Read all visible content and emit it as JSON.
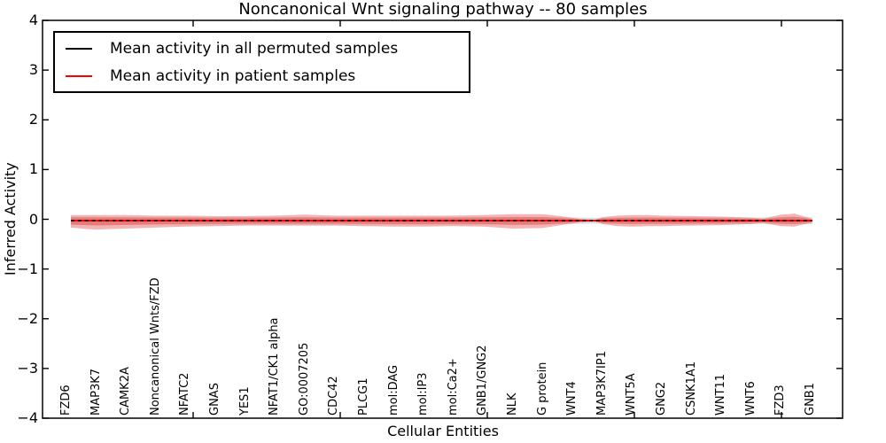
{
  "title": "Noncanonical Wnt signaling pathway -- 80 samples",
  "legend": {
    "items": [
      {
        "label": "Mean activity in all permuted samples",
        "color": "#000000"
      },
      {
        "label": "Mean activity in patient samples",
        "color": "#ff0000"
      }
    ]
  },
  "axes": {
    "ylabel": "Inferred Activity",
    "xlabel": "Cellular Entities",
    "yticks": [
      "4",
      "3",
      "2",
      "1",
      "0",
      "−1",
      "−2",
      "−3",
      "−4"
    ],
    "ylim": [
      -4,
      4
    ]
  },
  "chart_data": {
    "type": "line",
    "title": "Noncanonical Wnt signaling pathway -- 80 samples",
    "xlabel": "Cellular Entities",
    "ylabel": "Inferred Activity",
    "ylim": [
      -4,
      4
    ],
    "grid": false,
    "legend_position": "upper left",
    "categories": [
      "FZD6",
      "MAP3K7",
      "CAMK2A",
      "Noncanonical Wnts/FZD",
      "NFATC2",
      "GNAS",
      "YES1",
      "NFAT1/CK1 alpha",
      "GO:0007205",
      "CDC42",
      "PLCG1",
      "mol:DAG",
      "mol:IP3",
      "mol:Ca2+",
      "GNB1/GNG2",
      "NLK",
      "G protein",
      "WNT4",
      "MAP3K7IP1",
      "WNT5A",
      "GNG2",
      "CSNK1A1",
      "WNT11",
      "WNT6",
      "FZD3",
      "GNB1"
    ],
    "series": [
      {
        "name": "Mean activity in all permuted samples",
        "color": "#000000",
        "style": "dashed",
        "values": [
          0,
          0,
          0,
          0,
          0,
          0,
          0,
          0,
          0,
          0,
          0,
          0,
          0,
          0,
          0,
          0,
          0,
          0,
          0,
          0,
          0,
          0,
          0,
          0,
          0,
          0
        ]
      },
      {
        "name": "Mean activity in patient samples",
        "color": "#ff0000",
        "style": "solid",
        "values": [
          -0.02,
          -0.02,
          -0.02,
          -0.02,
          -0.02,
          -0.02,
          -0.02,
          -0.02,
          -0.02,
          -0.02,
          -0.02,
          -0.02,
          -0.02,
          -0.02,
          -0.02,
          -0.02,
          -0.02,
          -0.02,
          -0.02,
          -0.02,
          -0.02,
          -0.02,
          -0.02,
          -0.02,
          -0.02,
          -0.02
        ]
      }
    ],
    "bands": [
      {
        "name": "permuted-samples-std",
        "color": "#b8b8b8",
        "opacity": 0.5,
        "layers": [
          1
        ],
        "points": [
          [
            0.15,
            0.075,
            0.085
          ],
          [
            3,
            0.07,
            0.08
          ],
          [
            8,
            0.065,
            0.075
          ],
          [
            13,
            0.07,
            0.08
          ],
          [
            16,
            0.07,
            0.075
          ],
          [
            17.75,
            0.055,
            0.06
          ],
          [
            20,
            0.065,
            0.07
          ],
          [
            23.4,
            0.06,
            0.065
          ],
          [
            24.45,
            0.07,
            0.07
          ],
          [
            25.05,
            0.07,
            0.075
          ]
        ]
      },
      {
        "name": "patient-samples-std",
        "color": "#e74c4c",
        "opacity": 0.42,
        "layers": [
          1,
          0.55
        ],
        "points": [
          [
            0.15,
            0.11,
            0.14
          ],
          [
            0.7,
            0.11,
            0.17
          ],
          [
            1,
            0.11,
            0.18
          ],
          [
            1.5,
            0.11,
            0.17
          ],
          [
            2,
            0.11,
            0.16
          ],
          [
            3,
            0.1,
            0.14
          ],
          [
            4,
            0.1,
            0.12
          ],
          [
            5,
            0.09,
            0.11
          ],
          [
            6,
            0.09,
            0.1
          ],
          [
            7,
            0.1,
            0.1
          ],
          [
            8,
            0.12,
            0.1
          ],
          [
            9,
            0.1,
            0.1
          ],
          [
            10,
            0.1,
            0.11
          ],
          [
            11,
            0.1,
            0.12
          ],
          [
            12,
            0.1,
            0.12
          ],
          [
            13,
            0.1,
            0.11
          ],
          [
            14,
            0.11,
            0.12
          ],
          [
            15,
            0.13,
            0.16
          ],
          [
            16,
            0.13,
            0.15
          ],
          [
            16.6,
            0.09,
            0.09
          ],
          [
            17.3,
            0.03,
            0.03
          ],
          [
            17.75,
            0.015,
            0.015
          ],
          [
            18,
            0.07,
            0.07
          ],
          [
            18.5,
            0.1,
            0.11
          ],
          [
            19,
            0.11,
            0.12
          ],
          [
            19.5,
            0.11,
            0.11
          ],
          [
            20,
            0.1,
            0.11
          ],
          [
            21,
            0.09,
            0.1
          ],
          [
            22,
            0.08,
            0.09
          ],
          [
            23,
            0.06,
            0.07
          ],
          [
            23.4,
            0.04,
            0.05
          ],
          [
            24,
            0.12,
            0.11
          ],
          [
            24.45,
            0.14,
            0.12
          ],
          [
            24.8,
            0.08,
            0.07
          ],
          [
            25.05,
            0.03,
            0.04
          ]
        ]
      }
    ]
  }
}
